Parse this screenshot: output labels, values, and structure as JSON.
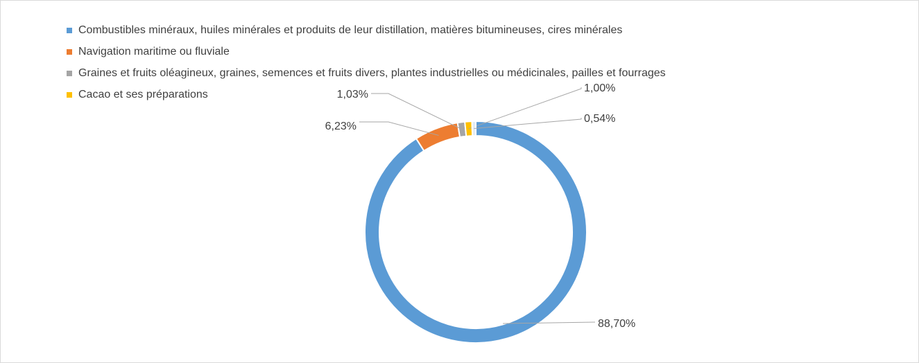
{
  "chart_data": {
    "type": "donut",
    "categories": [
      "Combustibles minéraux, huiles minérales et produits de leur distillation, matières bitumineuses, cires minérales",
      "Navigation maritime ou fluviale",
      "Graines et fruits oléagineux, graines, semences et fruits divers, plantes industrielles ou médicinales, pailles et fourrages",
      "Cacao et ses préparations",
      null
    ],
    "values": [
      88.7,
      6.23,
      1.03,
      1.0,
      0.54
    ],
    "value_labels": [
      "88,70%",
      "6,23%",
      "1,03%",
      "1,00%",
      "0,54%"
    ],
    "colors": [
      "#5b9bd5",
      "#ed7d31",
      "#a5a5a5",
      "#ffc000",
      "#e4ecf6"
    ],
    "legend": "top-left"
  }
}
